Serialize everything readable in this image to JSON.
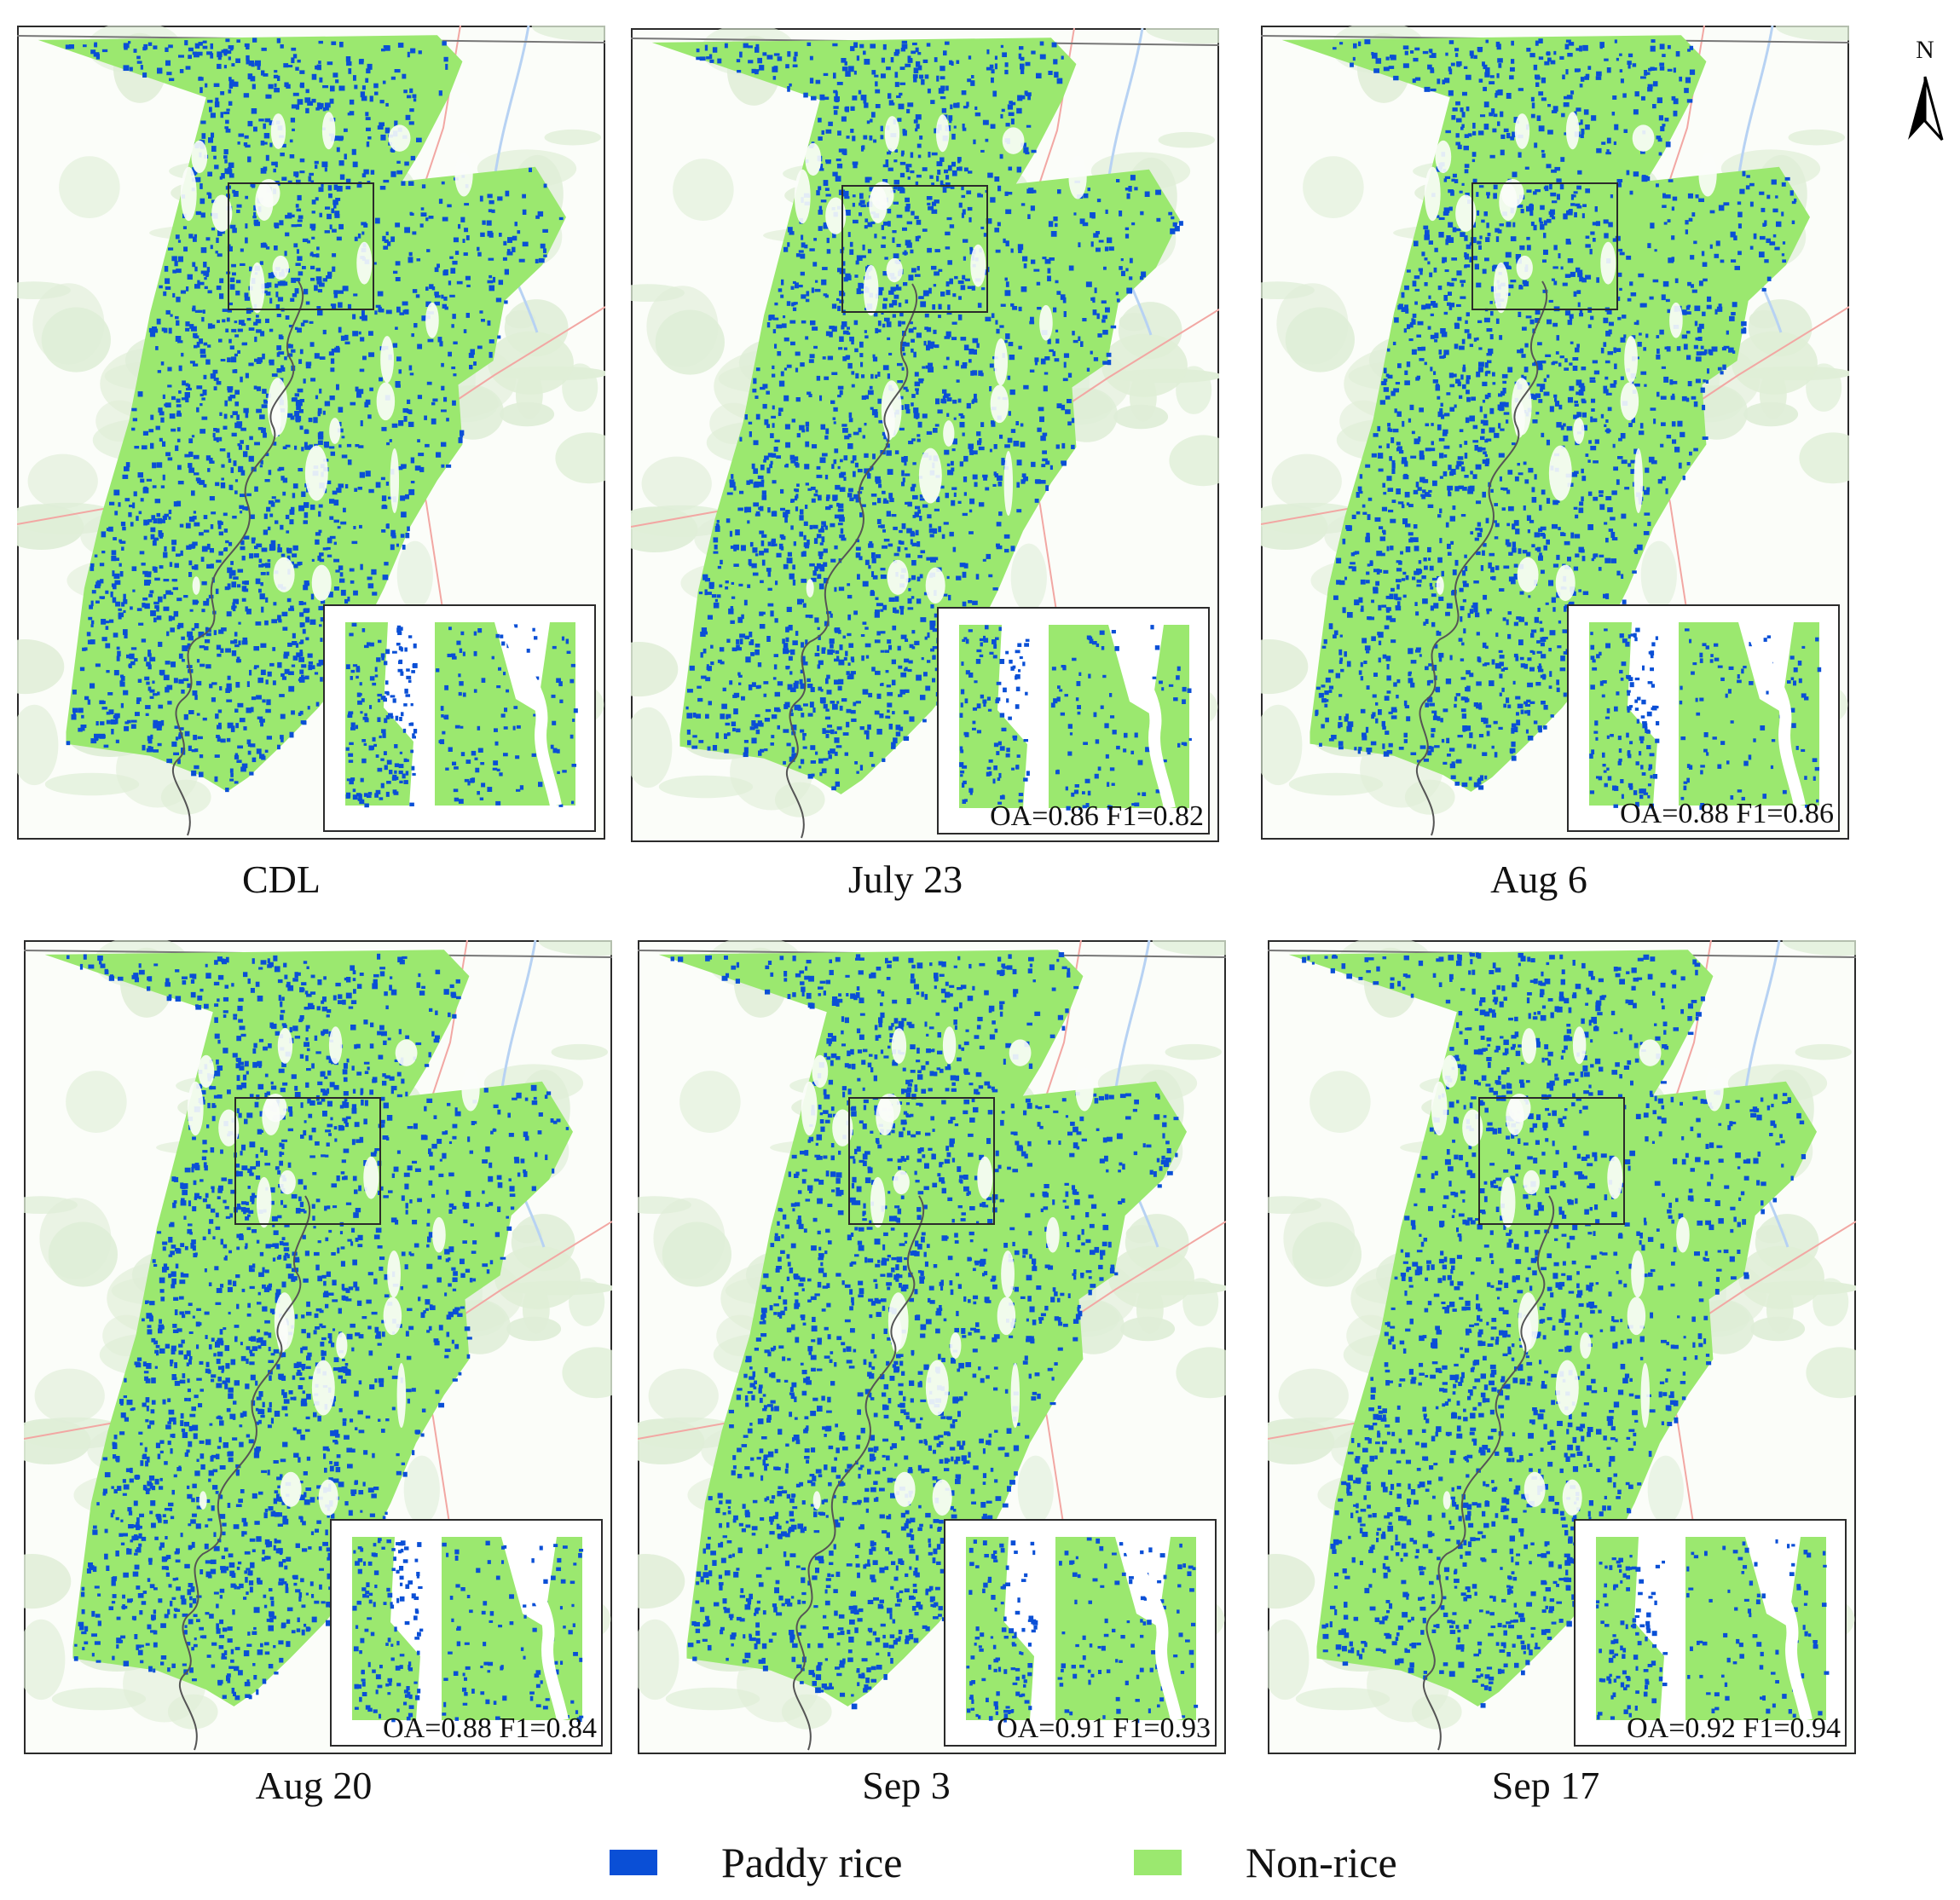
{
  "colors": {
    "rice": "#0a4fd6",
    "nonrice": "#9be86f",
    "base": "#dfeed7",
    "frame": "#2b2b2b",
    "road": "#f2a7a3",
    "river": "#b7d2f3",
    "water": "#c5d6c0"
  },
  "north_arrow": {
    "label": "N",
    "icon": "north-arrow-icon"
  },
  "panels": [
    {
      "caption": "CDL",
      "metrics": "",
      "rice_density": 0.62
    },
    {
      "caption": "July 23",
      "metrics": "OA=0.86 F1=0.82",
      "rice_density": 0.5
    },
    {
      "caption": "Aug 6",
      "metrics": "OA=0.88 F1=0.86",
      "rice_density": 0.46
    },
    {
      "caption": "Aug 20",
      "metrics": "OA=0.88 F1=0.84",
      "rice_density": 0.5
    },
    {
      "caption": "Sep 3",
      "metrics": "OA=0.91 F1=0.93",
      "rice_density": 0.44
    },
    {
      "caption": "Sep 17",
      "metrics": "OA=0.92 F1=0.94",
      "rice_density": 0.38
    }
  ],
  "legend": [
    {
      "label": "Paddy rice",
      "color": "#0a4fd6"
    },
    {
      "label": "Non-rice",
      "color": "#9be86f"
    }
  ]
}
